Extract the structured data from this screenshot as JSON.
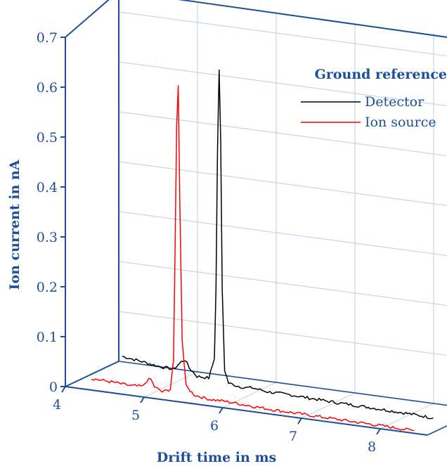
{
  "chart_data": {
    "type": "line",
    "xlabel": "Drift time in ms",
    "ylabel": "Ion current in nA",
    "xlim": [
      4,
      8
    ],
    "ylim": [
      0,
      0.7
    ],
    "x_ticks": [
      "4",
      "5",
      "6",
      "7",
      "8"
    ],
    "y_ticks": [
      "0",
      "0.1",
      "0.2",
      "0.3",
      "0.4",
      "0.5",
      "0.6",
      "0.7"
    ],
    "legend_title": "Ground reference",
    "legend_position": "top-right",
    "grid": true,
    "projection": "3d-perspective",
    "series": [
      {
        "name": "Detector",
        "color": "#000000",
        "depth": "back",
        "x": [
          4.35,
          4.6,
          4.8,
          5.0,
          5.1,
          5.15,
          5.2,
          5.3,
          5.45,
          5.52,
          5.54,
          5.56,
          5.58,
          5.6,
          5.62,
          5.65,
          5.7,
          5.8,
          5.9,
          6.0,
          6.2,
          6.5,
          7.0,
          7.5,
          8.0,
          8.3
        ],
        "y": [
          0.04,
          0.035,
          0.03,
          0.028,
          0.045,
          0.05,
          0.035,
          0.02,
          0.02,
          0.06,
          0.2,
          0.48,
          0.64,
          0.5,
          0.2,
          0.04,
          0.015,
          0.012,
          0.01,
          0.012,
          0.008,
          0.008,
          0.005,
          0.004,
          0.002,
          0.0
        ]
      },
      {
        "name": "Ion source",
        "color": "#ff0000",
        "depth": "front",
        "x": [
          4.3,
          4.6,
          4.8,
          4.95,
          5.0,
          5.05,
          5.1,
          5.2,
          5.3,
          5.34,
          5.36,
          5.38,
          5.4,
          5.42,
          5.45,
          5.5,
          5.6,
          5.7,
          5.8,
          6.0,
          6.3,
          6.6,
          7.0,
          7.5,
          8.0,
          8.4
        ],
        "y": [
          0.02,
          0.018,
          0.016,
          0.018,
          0.03,
          0.035,
          0.02,
          0.012,
          0.02,
          0.08,
          0.3,
          0.55,
          0.63,
          0.4,
          0.12,
          0.03,
          0.015,
          0.012,
          0.01,
          0.01,
          0.008,
          0.006,
          0.005,
          0.004,
          0.003,
          0.002
        ]
      }
    ]
  }
}
